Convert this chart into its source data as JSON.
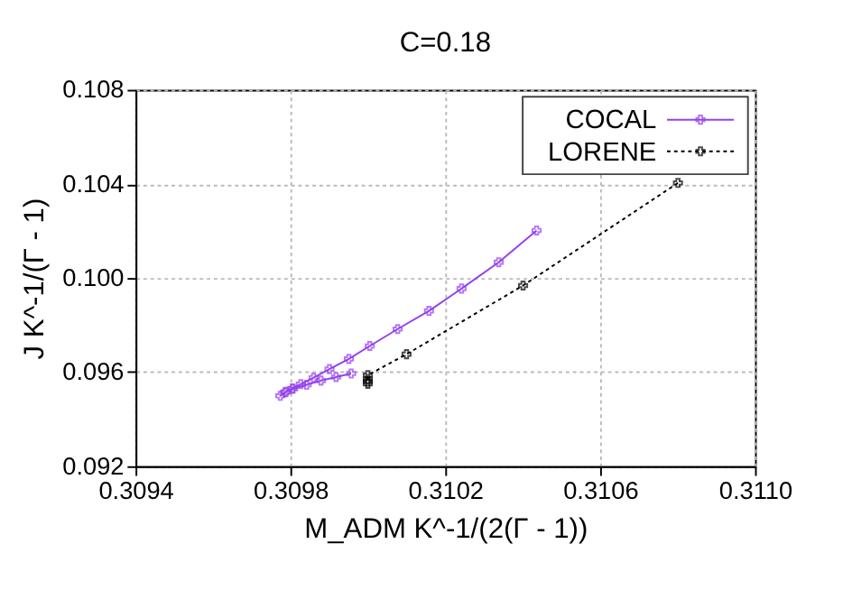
{
  "chart_data": {
    "type": "line",
    "title": "C=0.18",
    "xlabel": "M_ADM K^-1/(2(Γ - 1))",
    "ylabel": "J K^-1/(Γ - 1)",
    "xlim": [
      0.3094,
      0.311
    ],
    "xticks": [
      0.3094,
      0.3098,
      0.3102,
      0.3106,
      {
        "value": 0.311,
        "label": "0.3110"
      }
    ],
    "ylim": [
      0.092,
      0.108
    ],
    "yticks": [
      0.092,
      0.096,
      {
        "value": 0.1,
        "label": "0.100"
      },
      0.104,
      0.108
    ],
    "grid": true,
    "legend": "top right",
    "series": [
      {
        "name": "COCAL",
        "color": "#9440ed",
        "marker": "cross",
        "line_style": "solid",
        "x": [
          0.310436,
          0.310338,
          0.310242,
          0.310158,
          0.310077,
          0.310005,
          0.309951,
          0.309901,
          0.30986,
          0.309827,
          0.309805,
          0.309786,
          0.309774,
          0.309789,
          0.309807,
          0.309842,
          0.309879,
          0.309918,
          0.309957
        ],
        "values": [
          0.10202,
          0.10067,
          0.09955,
          0.0986,
          0.09783,
          0.09711,
          0.09656,
          0.09613,
          0.09576,
          0.09549,
          0.09531,
          0.09514,
          0.09499,
          0.09516,
          0.09529,
          0.09546,
          0.09564,
          0.09579,
          0.09594
        ]
      },
      {
        "name": "LORENE",
        "color": "#000000",
        "marker": "cross",
        "line_style": "dashed",
        "x": [
          0.310801,
          0.310401,
          0.3101,
          0.31,
          0.31,
          0.31,
          0.31
        ],
        "values": [
          0.10404,
          0.09968,
          0.09676,
          0.09587,
          0.0957,
          0.0956,
          0.0955
        ]
      }
    ]
  }
}
